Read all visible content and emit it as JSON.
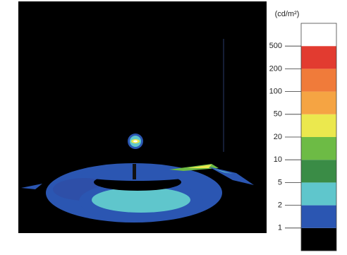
{
  "legend": {
    "unit": "(cd/m²)",
    "ticks": [
      1,
      2,
      5,
      10,
      20,
      50,
      100,
      200,
      500
    ],
    "colors": [
      "#000000",
      "#2b56b2",
      "#5fc6cc",
      "#3a8c46",
      "#6dbb45",
      "#ebe84e",
      "#f5a443",
      "#f07b3a",
      "#e23b30",
      "#ffffff"
    ]
  }
}
